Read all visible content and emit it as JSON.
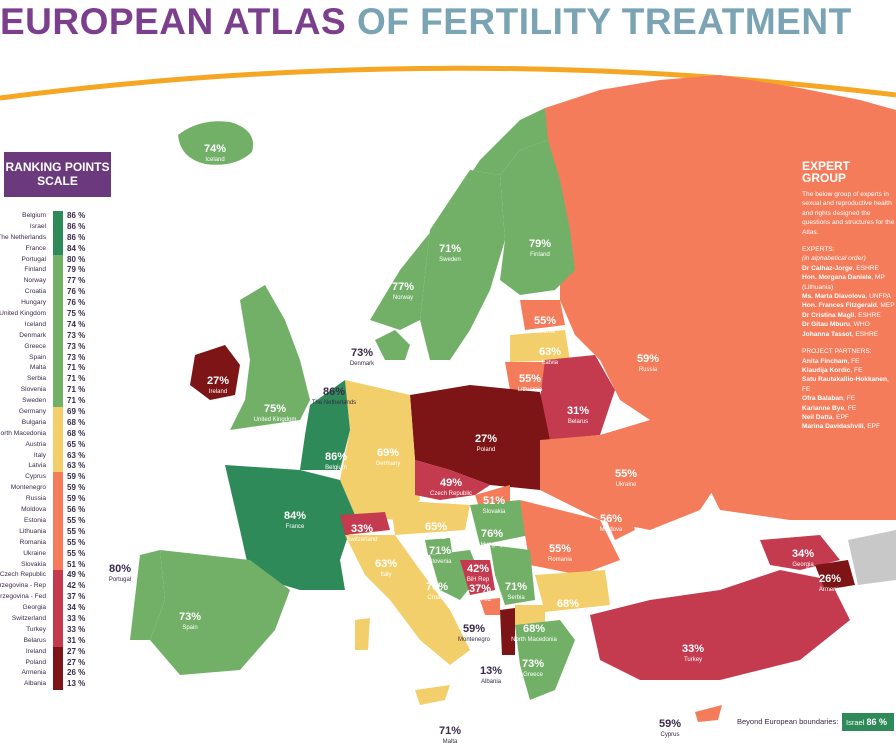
{
  "title": {
    "part1": "EUROPEAN ATLAS",
    "part2": "OF FERTILITY TREATMENT"
  },
  "ranking": {
    "header": "RANKING POINTS SCALE",
    "rows": [
      {
        "name": "Belgium",
        "value": "86 %",
        "color": "#2e8a58"
      },
      {
        "name": "Israel",
        "value": "86 %",
        "color": "#2e8a58"
      },
      {
        "name": "The Netherlands",
        "value": "86 %",
        "color": "#2e8a58"
      },
      {
        "name": "France",
        "value": "84 %",
        "color": "#2e8a58"
      },
      {
        "name": "Portugal",
        "value": "80 %",
        "color": "#72b068"
      },
      {
        "name": "Finland",
        "value": "79 %",
        "color": "#72b068"
      },
      {
        "name": "Norway",
        "value": "77 %",
        "color": "#72b068"
      },
      {
        "name": "Croatia",
        "value": "76 %",
        "color": "#72b068"
      },
      {
        "name": "Hungary",
        "value": "76 %",
        "color": "#72b068"
      },
      {
        "name": "United Kingdom",
        "value": "75 %",
        "color": "#72b068"
      },
      {
        "name": "Iceland",
        "value": "74 %",
        "color": "#72b068"
      },
      {
        "name": "Denmark",
        "value": "73 %",
        "color": "#72b068"
      },
      {
        "name": "Greece",
        "value": "73 %",
        "color": "#72b068"
      },
      {
        "name": "Spain",
        "value": "73 %",
        "color": "#72b068"
      },
      {
        "name": "Malta",
        "value": "71 %",
        "color": "#72b068"
      },
      {
        "name": "Serbia",
        "value": "71 %",
        "color": "#72b068"
      },
      {
        "name": "Slovenia",
        "value": "71 %",
        "color": "#72b068"
      },
      {
        "name": "Sweden",
        "value": "71 %",
        "color": "#72b068"
      },
      {
        "name": "Germany",
        "value": "69 %",
        "color": "#f3cf6b"
      },
      {
        "name": "Bulgaria",
        "value": "68 %",
        "color": "#f3cf6b"
      },
      {
        "name": "North Macedonia",
        "value": "68 %",
        "color": "#f3cf6b"
      },
      {
        "name": "Austria",
        "value": "65 %",
        "color": "#f3cf6b"
      },
      {
        "name": "Italy",
        "value": "63 %",
        "color": "#f3cf6b"
      },
      {
        "name": "Latvia",
        "value": "63 %",
        "color": "#f3cf6b"
      },
      {
        "name": "Cyprus",
        "value": "59 %",
        "color": "#f47c5a"
      },
      {
        "name": "Montenegro",
        "value": "59 %",
        "color": "#f47c5a"
      },
      {
        "name": "Russia",
        "value": "59 %",
        "color": "#f47c5a"
      },
      {
        "name": "Moldova",
        "value": "56 %",
        "color": "#f47c5a"
      },
      {
        "name": "Estonia",
        "value": "55 %",
        "color": "#f47c5a"
      },
      {
        "name": "Lithuania",
        "value": "55 %",
        "color": "#f47c5a"
      },
      {
        "name": "Romania",
        "value": "55 %",
        "color": "#f47c5a"
      },
      {
        "name": "Ukraine",
        "value": "55 %",
        "color": "#f47c5a"
      },
      {
        "name": "Slovakia",
        "value": "51 %",
        "color": "#f47c5a"
      },
      {
        "name": "Czech Republic",
        "value": "49 %",
        "color": "#c43a4f"
      },
      {
        "name": "Bosnia & Herzegovina - Rep",
        "value": "42 %",
        "color": "#c43a4f"
      },
      {
        "name": "Bosnia & Herzegovina - Fed",
        "value": "37 %",
        "color": "#c43a4f"
      },
      {
        "name": "Georgia",
        "value": "34 %",
        "color": "#c43a4f"
      },
      {
        "name": "Switzerland",
        "value": "33 %",
        "color": "#c43a4f"
      },
      {
        "name": "Turkey",
        "value": "33 %",
        "color": "#c43a4f"
      },
      {
        "name": "Belarus",
        "value": "31 %",
        "color": "#c43a4f"
      },
      {
        "name": "Ireland",
        "value": "27 %",
        "color": "#7d1416"
      },
      {
        "name": "Poland",
        "value": "27 %",
        "color": "#7d1416"
      },
      {
        "name": "Armenia",
        "value": "26 %",
        "color": "#7d1416"
      },
      {
        "name": "Albania",
        "value": "13 %",
        "color": "#7d1416"
      }
    ]
  },
  "map_labels": [
    {
      "pct": "74%",
      "country": "Iceland"
    },
    {
      "pct": "71%",
      "country": "Sweden"
    },
    {
      "pct": "79%",
      "country": "Finland"
    },
    {
      "pct": "77%",
      "country": "Norway"
    },
    {
      "pct": "55%",
      "country": "Estonia"
    },
    {
      "pct": "63%",
      "country": "Latvia"
    },
    {
      "pct": "55%",
      "country": "Lithuania"
    },
    {
      "pct": "59%",
      "country": "Russia"
    },
    {
      "pct": "73%",
      "country": "Denmark"
    },
    {
      "pct": "27%",
      "country": "Ireland"
    },
    {
      "pct": "75%",
      "country": "United Kingdom"
    },
    {
      "pct": "86%",
      "country": "The Netherlands"
    },
    {
      "pct": "86%",
      "country": "Belgium"
    },
    {
      "pct": "69%",
      "country": "Germany"
    },
    {
      "pct": "27%",
      "country": "Poland"
    },
    {
      "pct": "31%",
      "country": "Belarus"
    },
    {
      "pct": "49%",
      "country": "Czech Republic"
    },
    {
      "pct": "51%",
      "country": "Slovakia"
    },
    {
      "pct": "55%",
      "country": "Ukraine"
    },
    {
      "pct": "84%",
      "country": "France"
    },
    {
      "pct": "33%",
      "country": "Switzerland"
    },
    {
      "pct": "65%",
      "country": "Austria"
    },
    {
      "pct": "76%",
      "country": "Hungary"
    },
    {
      "pct": "56%",
      "country": "Moldova"
    },
    {
      "pct": "55%",
      "country": "Romania"
    },
    {
      "pct": "71%",
      "country": "Slovenia"
    },
    {
      "pct": "80%",
      "country": "Portugal"
    },
    {
      "pct": "73%",
      "country": "Spain"
    },
    {
      "pct": "63%",
      "country": "Italy"
    },
    {
      "pct": "76%",
      "country": "Croatia"
    },
    {
      "pct": "42%",
      "country": "BiH Rep"
    },
    {
      "pct": "37%",
      "country": "BiH Fed"
    },
    {
      "pct": "71%",
      "country": "Serbia"
    },
    {
      "pct": "68%",
      "country": "Bulgaria"
    },
    {
      "pct": "59%",
      "country": "Montenegro"
    },
    {
      "pct": "68%",
      "country": "North Macedonia"
    },
    {
      "pct": "13%",
      "country": "Albania"
    },
    {
      "pct": "73%",
      "country": "Greece"
    },
    {
      "pct": "33%",
      "country": "Turkey"
    },
    {
      "pct": "34%",
      "country": "Georgia"
    },
    {
      "pct": "26%",
      "country": "Armenia"
    },
    {
      "pct": "59%",
      "country": "Cyprus"
    },
    {
      "pct": "71%",
      "country": "Malta"
    }
  ],
  "expert_group": {
    "title": "EXPERT GROUP",
    "intro": "The below group of experts in sexual and reproductive health and rights designed the questions and structures for the Atlas.",
    "experts_heading": "EXPERTS:",
    "experts_note": "(in alphabetical order)",
    "experts": [
      {
        "name": "Dr Calhaz-Jorge",
        "affil": ", ESHRE"
      },
      {
        "name": "Hon. Morgana Daniele",
        "affil": ", MP (Lithuania)"
      },
      {
        "name": "Ms. Marta Diavolova",
        "affil": ", UNFPA"
      },
      {
        "name": "Hon. Frances Fitzgerald",
        "affil": ", MEP"
      },
      {
        "name": "Dr Cristina Magli",
        "affil": ", ESHRE"
      },
      {
        "name": "Dr Gitau Mburu",
        "affil": ", WHO"
      },
      {
        "name": "Johanna Tassot",
        "affil": ", ESHRE"
      }
    ],
    "partners_heading": "PROJECT PARTNERS:",
    "partners": [
      {
        "name": "Anita Fincham",
        "affil": ", FE"
      },
      {
        "name": "Klaudija Kordic",
        "affil": ", FE"
      },
      {
        "name": "Satu Rautakallio-Hokkanen",
        "affil": ", FE"
      },
      {
        "name": "Ofra Balaban",
        "affil": ", FE"
      },
      {
        "name": "Karianne Bye",
        "affil": ", FE"
      },
      {
        "name": "Neil Datta",
        "affil": ", EPF"
      },
      {
        "name": "Marina Davidashvili",
        "affil": ", EPF"
      }
    ]
  },
  "beyond": {
    "label": "Beyond European boundaries:",
    "country": "Israel",
    "value": "86 %"
  },
  "colors": {
    "dark_green": "#2e8a58",
    "green": "#72b068",
    "yellow": "#f3cf6b",
    "orange": "#f47c5a",
    "red": "#c43a4f",
    "dark_red": "#7d1416",
    "purple": "#6b3a7c",
    "sea": "#ffffff"
  }
}
